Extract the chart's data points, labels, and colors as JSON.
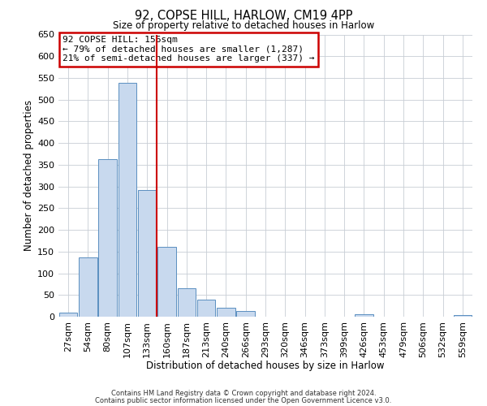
{
  "title": "92, COPSE HILL, HARLOW, CM19 4PP",
  "subtitle": "Size of property relative to detached houses in Harlow",
  "xlabel": "Distribution of detached houses by size in Harlow",
  "ylabel": "Number of detached properties",
  "footer_line1": "Contains HM Land Registry data © Crown copyright and database right 2024.",
  "footer_line2": "Contains public sector information licensed under the Open Government Licence v3.0.",
  "bar_labels": [
    "27sqm",
    "54sqm",
    "80sqm",
    "107sqm",
    "133sqm",
    "160sqm",
    "187sqm",
    "213sqm",
    "240sqm",
    "266sqm",
    "293sqm",
    "320sqm",
    "346sqm",
    "373sqm",
    "399sqm",
    "426sqm",
    "453sqm",
    "479sqm",
    "506sqm",
    "532sqm",
    "559sqm"
  ],
  "bar_heights": [
    10,
    136,
    363,
    538,
    292,
    160,
    66,
    40,
    21,
    13,
    0,
    0,
    0,
    0,
    0,
    5,
    0,
    0,
    0,
    0,
    3
  ],
  "bar_color": "#c8d9ee",
  "bar_edge_color": "#5a8fc0",
  "vline_pos": 4.5,
  "vline_color": "#cc0000",
  "annotation_title": "92 COPSE HILL: 156sqm",
  "annotation_line1": "← 79% of detached houses are smaller (1,287)",
  "annotation_line2": "21% of semi-detached houses are larger (337) →",
  "annotation_box_color": "#cc0000",
  "ylim": [
    0,
    650
  ],
  "yticks": [
    0,
    50,
    100,
    150,
    200,
    250,
    300,
    350,
    400,
    450,
    500,
    550,
    600,
    650
  ],
  "background_color": "#ffffff",
  "grid_color": "#c8cdd4"
}
